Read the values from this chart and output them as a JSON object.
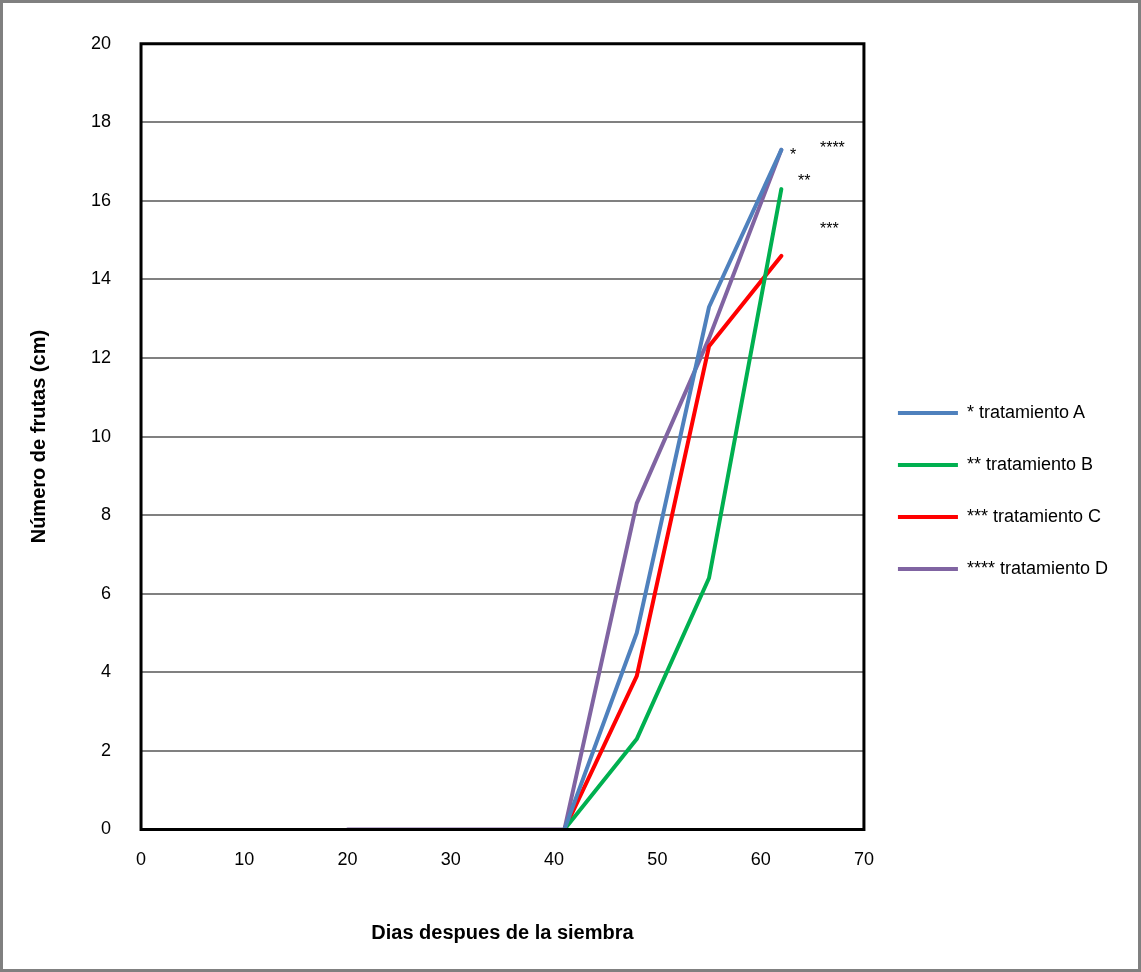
{
  "chart_data": {
    "type": "line",
    "xlabel": "Dias despues de la siembra",
    "ylabel": "Número de frutas (cm)",
    "series": [
      {
        "name": "* tratamiento A",
        "color": "#4f81bd",
        "x": [
          41,
          48,
          55,
          62
        ],
        "values": [
          0,
          5.0,
          13.3,
          17.3
        ]
      },
      {
        "name": "** tratamiento B",
        "color": "#00b050",
        "x": [
          41,
          48,
          55,
          62
        ],
        "values": [
          0,
          2.3,
          6.4,
          16.3
        ]
      },
      {
        "name": "*** tratamiento C",
        "color": "#ff0000",
        "x": [
          41,
          48,
          55,
          62
        ],
        "values": [
          0,
          3.9,
          12.3,
          14.6
        ]
      },
      {
        "name": "**** tratamiento D",
        "color": "#8064a2",
        "x": [
          20,
          41,
          48,
          55,
          62
        ],
        "values": [
          0,
          0,
          8.3,
          12.5,
          17.3
        ]
      }
    ],
    "xlim": [
      0,
      70
    ],
    "xticks": [
      0,
      10,
      20,
      30,
      40,
      50,
      60,
      70
    ],
    "ylim": [
      0,
      20
    ],
    "yticks": [
      0,
      2,
      4,
      6,
      8,
      10,
      12,
      14,
      16,
      18,
      20
    ],
    "grid": "y",
    "legend": "right",
    "marker": "none",
    "line_style": "solid",
    "annotations": [
      "****",
      "*",
      "**",
      "***"
    ]
  }
}
